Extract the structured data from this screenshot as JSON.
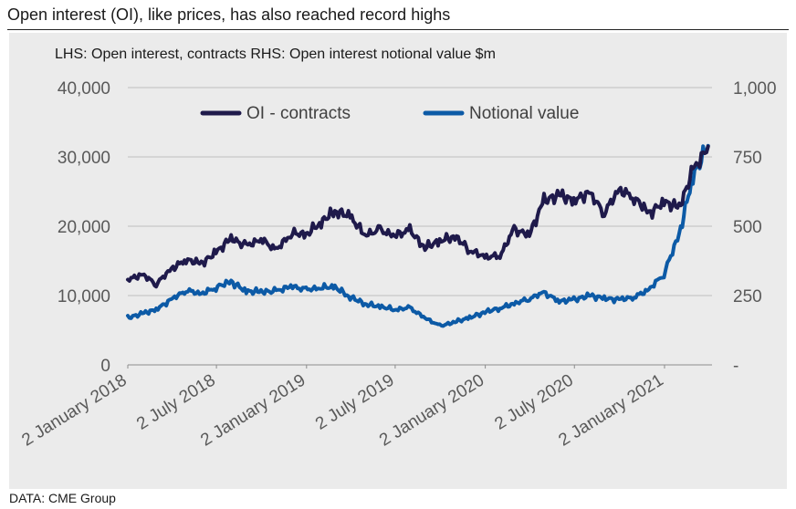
{
  "title": "Open interest (OI), like prices, has also reached record highs",
  "subtitle": "LHS: Open interest, contracts    RHS: Open interest notional value $m",
  "source": "DATA: CME Group",
  "colors": {
    "contracts": "#1f1a4b",
    "notional": "#0c5aa6",
    "grid": "#bfbfbf",
    "panel": "#ebebeb"
  },
  "chart_data": {
    "type": "line",
    "title": "Open interest (OI), like prices, has also reached record highs",
    "xlabel": "",
    "ylabel_left": "Open interest, contracts",
    "ylabel_right": "Open interest notional value $m",
    "ylim_left": [
      0,
      40000
    ],
    "ylim_right": [
      0,
      1000
    ],
    "xlim": [
      "2018-01-02",
      "2021-04-09"
    ],
    "y_ticks_left": [
      "0",
      "10,000",
      "20,000",
      "30,000",
      "40,000"
    ],
    "y_ticks_right": [
      "-",
      "250",
      "500",
      "750",
      "1,000"
    ],
    "x_ticks": [
      "2 January 2018",
      "2 July 2018",
      "2 January 2019",
      "2 July 2019",
      "2 January 2020",
      "2 July 2020",
      "2 January 2021"
    ],
    "x_tick_dates": [
      "2018-01-02",
      "2018-07-02",
      "2019-01-02",
      "2019-07-02",
      "2020-01-02",
      "2020-07-02",
      "2021-01-02"
    ],
    "grid": true,
    "legend_position": "top",
    "series": [
      {
        "name": "OI - contracts",
        "axis": "left",
        "x": [
          "2018-01-02",
          "2018-02-01",
          "2018-03-01",
          "2018-04-01",
          "2018-05-01",
          "2018-06-01",
          "2018-07-01",
          "2018-08-01",
          "2018-09-01",
          "2018-10-01",
          "2018-11-01",
          "2018-12-01",
          "2019-01-01",
          "2019-02-01",
          "2019-03-01",
          "2019-04-01",
          "2019-05-01",
          "2019-06-01",
          "2019-07-01",
          "2019-08-01",
          "2019-09-01",
          "2019-10-01",
          "2019-11-01",
          "2019-12-01",
          "2020-01-01",
          "2020-02-01",
          "2020-03-01",
          "2020-04-01",
          "2020-05-01",
          "2020-06-01",
          "2020-07-01",
          "2020-08-01",
          "2020-09-01",
          "2020-10-01",
          "2020-11-01",
          "2020-12-01",
          "2021-01-01",
          "2021-02-01",
          "2021-03-01",
          "2021-04-01"
        ],
        "values": [
          12300,
          13000,
          11700,
          13800,
          15200,
          14600,
          16200,
          18300,
          17100,
          18200,
          16500,
          19000,
          18800,
          20600,
          22200,
          21400,
          18800,
          19400,
          18700,
          19400,
          16900,
          17900,
          18500,
          16600,
          15500,
          15800,
          19500,
          18800,
          23700,
          24500,
          23700,
          24800,
          22000,
          25200,
          24200,
          21800,
          23500,
          22700,
          28000,
          31500
        ]
      },
      {
        "name": "Notional value",
        "axis": "right",
        "x": [
          "2018-01-02",
          "2018-02-01",
          "2018-03-01",
          "2018-04-01",
          "2018-05-01",
          "2018-06-01",
          "2018-07-01",
          "2018-08-01",
          "2018-09-01",
          "2018-10-01",
          "2018-11-01",
          "2018-12-01",
          "2019-01-01",
          "2019-02-01",
          "2019-03-01",
          "2019-04-01",
          "2019-05-01",
          "2019-06-01",
          "2019-07-01",
          "2019-08-01",
          "2019-09-01",
          "2019-10-01",
          "2019-11-01",
          "2019-12-01",
          "2020-01-01",
          "2020-02-01",
          "2020-03-01",
          "2020-04-01",
          "2020-05-01",
          "2020-06-01",
          "2020-07-01",
          "2020-08-01",
          "2020-09-01",
          "2020-10-01",
          "2020-11-01",
          "2020-12-01",
          "2021-01-01",
          "2021-02-01",
          "2021-03-01",
          "2021-04-01"
        ],
        "values": [
          170,
          185,
          200,
          235,
          270,
          255,
          280,
          300,
          265,
          265,
          265,
          285,
          270,
          280,
          280,
          245,
          220,
          210,
          200,
          205,
          170,
          140,
          155,
          170,
          190,
          205,
          220,
          240,
          260,
          230,
          235,
          250,
          240,
          235,
          245,
          270,
          330,
          470,
          680,
          790
        ]
      }
    ]
  }
}
